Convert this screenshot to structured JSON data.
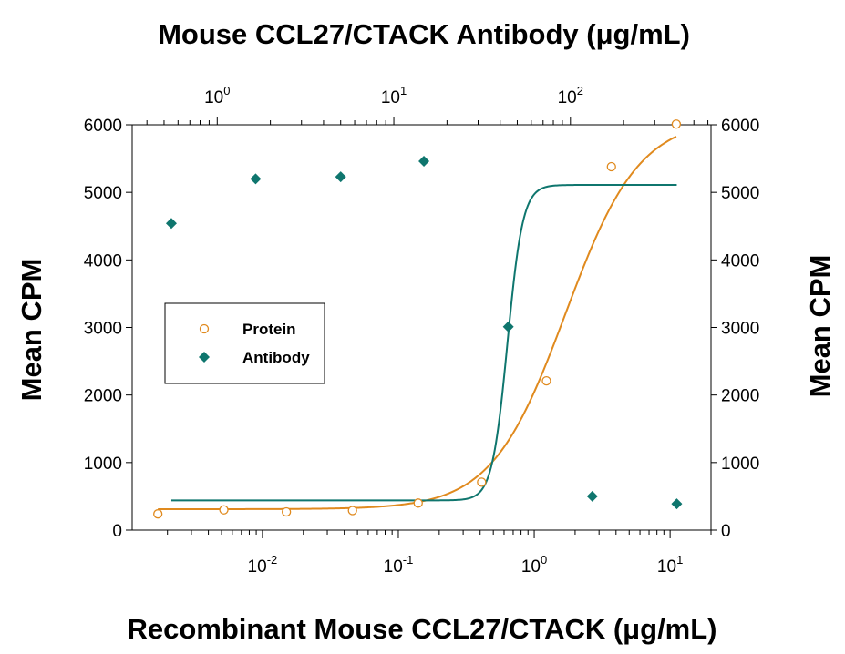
{
  "chart_data": {
    "type": "scatter",
    "title": "Mouse CCL27/CTACK Antibody (μg/mL)",
    "xlabel": "Recombinant Mouse CCL27/CTACK (μg/mL)",
    "ylabel": "Mean CPM",
    "ylabel_right": "Mean CPM",
    "x_scale": "log",
    "xlim": [
      0.0011,
      20
    ],
    "ylim": [
      0,
      6000
    ],
    "y_ticks": [
      "0",
      "1000",
      "2000",
      "3000",
      "4000",
      "5000",
      "6000"
    ],
    "x_ticks": [
      {
        "value": 0.01,
        "base": "10",
        "exp": "-2"
      },
      {
        "value": 0.1,
        "base": "10",
        "exp": "-1"
      },
      {
        "value": 1,
        "base": "10",
        "exp": "0"
      },
      {
        "value": 10,
        "base": "10",
        "exp": "1"
      }
    ],
    "top_axis": {
      "x_scale": "log",
      "xlim": [
        0.33,
        625
      ],
      "ticks": [
        {
          "value": 1,
          "base": "10",
          "exp": "0"
        },
        {
          "value": 10,
          "base": "10",
          "exp": "1"
        },
        {
          "value": 100,
          "base": "10",
          "exp": "2"
        }
      ]
    },
    "grid": false,
    "legend_position": "middle-left",
    "series": [
      {
        "name": "Protein",
        "color": "#e08a1e",
        "marker": "open-circle",
        "axis": "bottom",
        "points": [
          [
            0.0017,
            240
          ],
          [
            0.0052,
            300
          ],
          [
            0.015,
            270
          ],
          [
            0.046,
            290
          ],
          [
            0.14,
            400
          ],
          [
            0.41,
            710
          ],
          [
            1.23,
            2210
          ],
          [
            3.7,
            5380
          ],
          [
            11.1,
            6010
          ]
        ],
        "fit": {
          "bottom": 310,
          "top": 6100,
          "ec50": 1.7,
          "hill": 1.6
        }
      },
      {
        "name": "Antibody",
        "color": "#0f766e",
        "marker": "filled-diamond",
        "axis": "top",
        "points": [
          [
            0.55,
            4540
          ],
          [
            1.65,
            5200
          ],
          [
            5.0,
            5230
          ],
          [
            14.8,
            5460
          ],
          [
            44.5,
            3010
          ],
          [
            133,
            500
          ],
          [
            400,
            390
          ]
        ],
        "fit": {
          "bottom": 440,
          "top": 5110,
          "ec50": 44,
          "hill": 10
        }
      }
    ]
  }
}
